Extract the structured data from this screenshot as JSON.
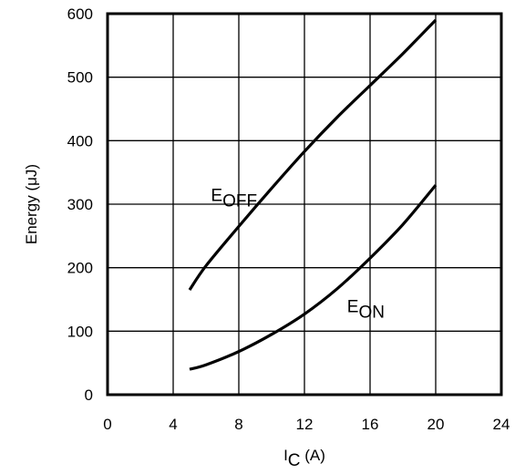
{
  "chart_data": {
    "type": "line",
    "title": "",
    "xlabel": {
      "main": "I",
      "sub": "C",
      "unit": " (A)"
    },
    "ylabel": "Energy (μJ)",
    "xlim": [
      0,
      24
    ],
    "ylim": [
      0,
      600
    ],
    "xticks": [
      0,
      4,
      8,
      12,
      16,
      20,
      24
    ],
    "yticks": [
      0,
      100,
      200,
      300,
      400,
      500,
      600
    ],
    "grid": true,
    "legend": "none (inline curve labels)",
    "series": [
      {
        "name": "E_OFF",
        "label_main": "E",
        "label_sub": "OFF",
        "label_at": [
          6.3,
          305
        ],
        "x": [
          5,
          6,
          8,
          10,
          12,
          14,
          16,
          18,
          20
        ],
        "y": [
          165,
          203,
          265,
          325,
          383,
          437,
          487,
          537,
          590
        ]
      },
      {
        "name": "E_ON",
        "label_main": "E",
        "label_sub": "ON",
        "label_at": [
          14.6,
          130
        ],
        "x": [
          5,
          6,
          8,
          10,
          12,
          14,
          16,
          18,
          20
        ],
        "y": [
          40,
          47,
          68,
          95,
          127,
          167,
          215,
          268,
          330
        ]
      }
    ]
  }
}
